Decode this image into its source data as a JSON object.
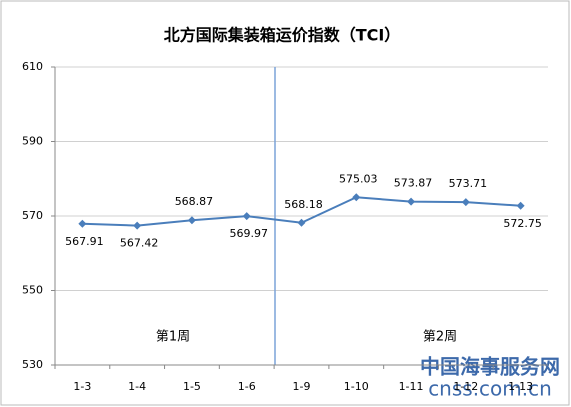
{
  "chart_data": {
    "type": "line",
    "title": "北方国际集装箱运价指数（TCI）",
    "categories": [
      "1-3",
      "1-4",
      "1-5",
      "1-6",
      "1-9",
      "1-10",
      "1-11",
      "1-12",
      "1-13"
    ],
    "series": [
      {
        "name": "TCI",
        "color": "#4a7ebb",
        "values": [
          567.91,
          567.42,
          568.87,
          569.97,
          568.18,
          575.03,
          573.87,
          573.71,
          572.75
        ]
      }
    ],
    "ylim": [
      530,
      610
    ],
    "yticks": [
      530,
      550,
      570,
      590,
      610
    ],
    "grid": true,
    "annotations": [
      "第1周",
      "第2周"
    ],
    "watermark": [
      "中国海事服务网",
      "cnss.com.cn"
    ]
  }
}
